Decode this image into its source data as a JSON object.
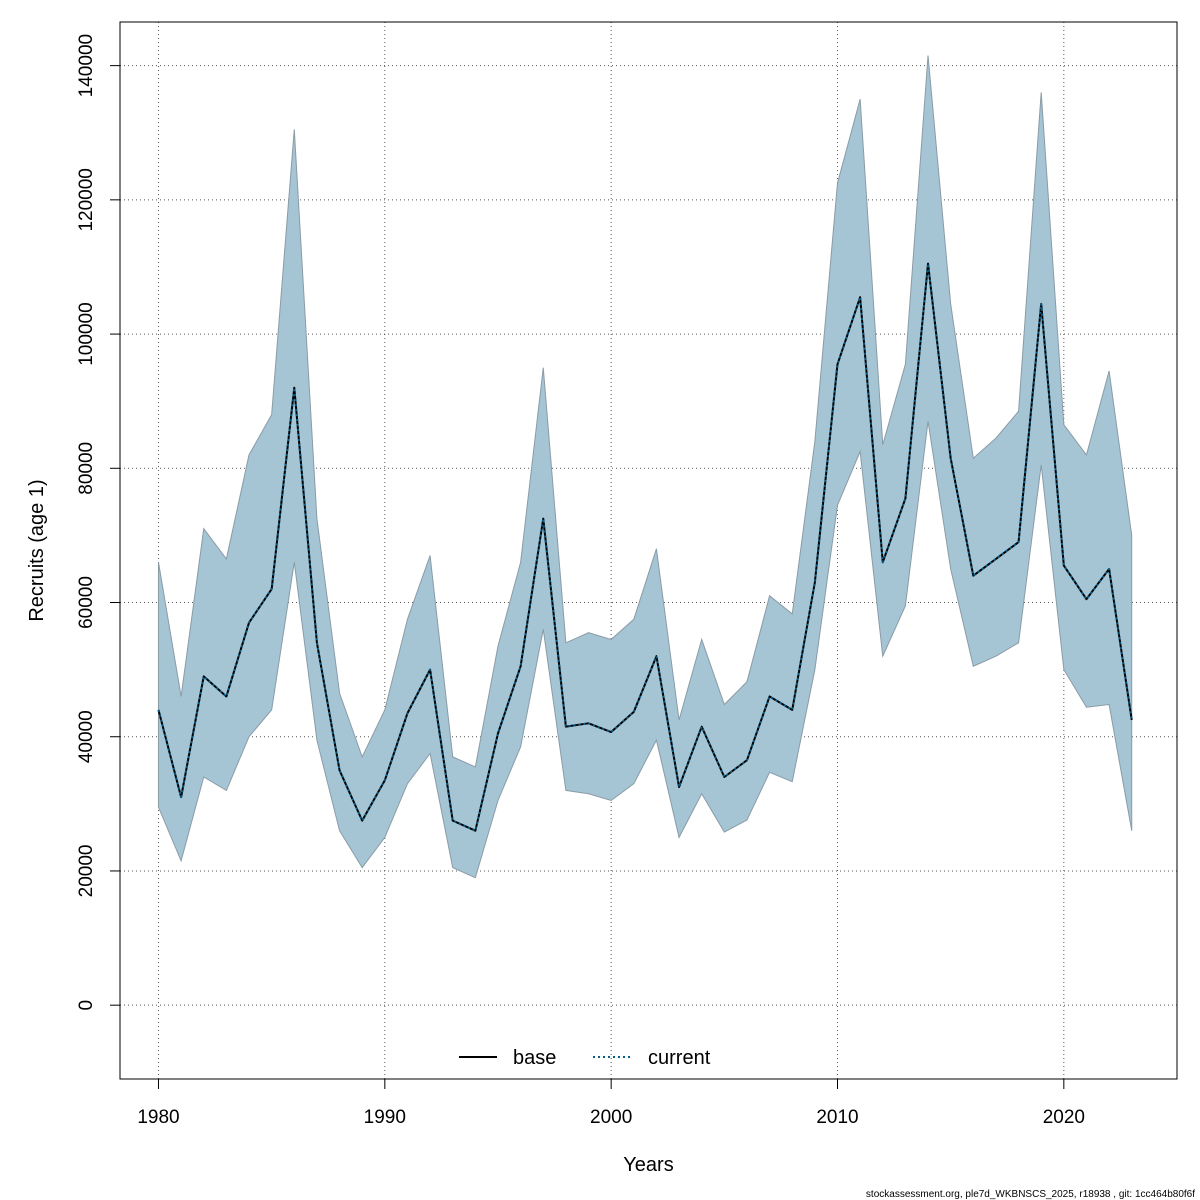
{
  "chart_data": {
    "type": "area",
    "xlabel": "Years",
    "ylabel": "Recruits (age 1)",
    "xlim": [
      1978.3,
      2025.0
    ],
    "ylim": [
      -11000,
      146500
    ],
    "xticks": [
      1980,
      1990,
      2000,
      2010,
      2020
    ],
    "yticks": [
      0,
      20000,
      40000,
      60000,
      80000,
      100000,
      120000,
      140000
    ],
    "grid": true,
    "legend_position": "bottom-center",
    "x": [
      1980,
      1981,
      1982,
      1983,
      1984,
      1985,
      1986,
      1987,
      1988,
      1989,
      1990,
      1991,
      1992,
      1993,
      1994,
      1995,
      1996,
      1997,
      1998,
      1999,
      2000,
      2001,
      2002,
      2003,
      2004,
      2005,
      2006,
      2007,
      2008,
      2009,
      2010,
      2011,
      2012,
      2013,
      2014,
      2015,
      2016,
      2017,
      2018,
      2019,
      2020,
      2021,
      2022,
      2023
    ],
    "series": [
      {
        "name": "base",
        "line_style": "solid",
        "color": "#000000",
        "values": [
          44000,
          31000,
          49000,
          46000,
          57000,
          62000,
          92000,
          54000,
          35000,
          27500,
          33500,
          43500,
          50000,
          27500,
          26000,
          40500,
          50500,
          72500,
          41500,
          42000,
          40700,
          43700,
          52000,
          32500,
          41500,
          34000,
          36500,
          46000,
          44000,
          63000,
          95500,
          105500,
          66000,
          75500,
          110500,
          81500,
          64000,
          66500,
          69000,
          104500,
          65500,
          60500,
          65000,
          42500
        ]
      },
      {
        "name": "current",
        "line_style": "dotted",
        "color": "#0a5f8a",
        "values": [
          44000,
          31000,
          49000,
          46000,
          57000,
          62000,
          92000,
          54000,
          35000,
          27500,
          33500,
          43500,
          50000,
          27500,
          26000,
          40500,
          50500,
          72500,
          41500,
          42000,
          40700,
          43700,
          52000,
          32500,
          41500,
          34000,
          36500,
          46000,
          44000,
          63000,
          95500,
          105500,
          66000,
          75500,
          110500,
          81500,
          64000,
          66500,
          69000,
          104500,
          65500,
          60500,
          65000,
          42500
        ]
      }
    ],
    "confidence_band": {
      "color": "#a5c4d4",
      "border_color": "#8a9ca6",
      "lower": [
        29500,
        21500,
        34000,
        32000,
        40000,
        44000,
        66000,
        39500,
        26000,
        20500,
        25000,
        33000,
        37500,
        20500,
        19000,
        30500,
        38500,
        56000,
        32000,
        31500,
        30500,
        33000,
        39500,
        25000,
        31500,
        25800,
        27600,
        34700,
        33300,
        50000,
        74500,
        82500,
        52000,
        59500,
        87000,
        65000,
        50500,
        52000,
        54000,
        80500,
        50000,
        44400,
        44800,
        26000
      ],
      "upper": [
        66000,
        46000,
        71000,
        66500,
        82000,
        88000,
        130500,
        72500,
        46500,
        37000,
        44000,
        57500,
        67000,
        37000,
        35500,
        53500,
        66000,
        95000,
        54000,
        55500,
        54500,
        57500,
        68000,
        42500,
        54500,
        44800,
        48200,
        61000,
        58300,
        84000,
        122500,
        135000,
        83500,
        95500,
        141500,
        104500,
        81500,
        84500,
        88500,
        136000,
        86500,
        82000,
        94500,
        70000
      ]
    }
  },
  "footer": {
    "text": "stockassessment.org, ple7d_WKBNSCS_2025, r18938 , git: 1cc464b80f6f"
  }
}
